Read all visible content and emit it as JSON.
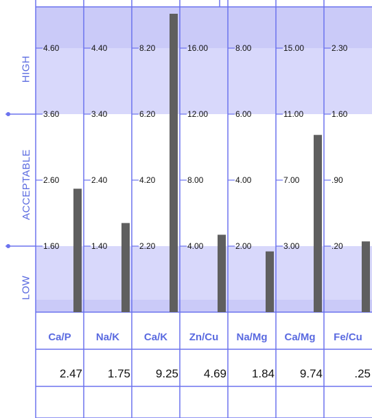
{
  "colors": {
    "grid": "#6b72ee",
    "zone_high_low": "#d8d8fb",
    "zone_band_dark": "#cacaf8",
    "zone_acceptable": "#ffffff",
    "bar": "#5f5f5f",
    "label": "#5a6ae0",
    "tick_text": "#111111"
  },
  "zones": {
    "high": "HIGH",
    "acceptable": "ACCEPTABLE",
    "low": "LOW"
  },
  "chart_data": {
    "type": "bar",
    "categories": [
      "Ca/P",
      "Na/K",
      "Ca/K",
      "Zn/Cu",
      "Na/Mg",
      "Ca/Mg",
      "Fe/Cu"
    ],
    "values": [
      2.47,
      1.75,
      9.25,
      4.69,
      1.84,
      9.74,
      0.25
    ],
    "value_labels": [
      "2.47",
      "1.75",
      "9.25",
      "4.69",
      "1.84",
      "9.74",
      ".25"
    ],
    "tick_labels": [
      [
        "4.60",
        "3.60",
        "2.60",
        "1.60"
      ],
      [
        "4.40",
        "3.40",
        "2.40",
        "1.40"
      ],
      [
        "8.20",
        "6.20",
        "4.20",
        "2.20"
      ],
      [
        "16.00",
        "12.00",
        "8.00",
        "4.00"
      ],
      [
        "8.00",
        "6.00",
        "4.00",
        "2.00"
      ],
      [
        "15.00",
        "11.00",
        "7.00",
        "3.00"
      ],
      [
        "2.30",
        "1.60",
        ".90",
        ".20"
      ]
    ],
    "tick_values": [
      [
        4.6,
        3.6,
        2.6,
        1.6
      ],
      [
        4.4,
        3.4,
        2.4,
        1.4
      ],
      [
        8.2,
        6.2,
        4.2,
        2.2
      ],
      [
        16,
        12,
        8,
        4
      ],
      [
        8,
        6,
        4,
        2
      ],
      [
        15,
        11,
        7,
        3
      ],
      [
        2.3,
        1.6,
        0.9,
        0.2
      ]
    ]
  }
}
